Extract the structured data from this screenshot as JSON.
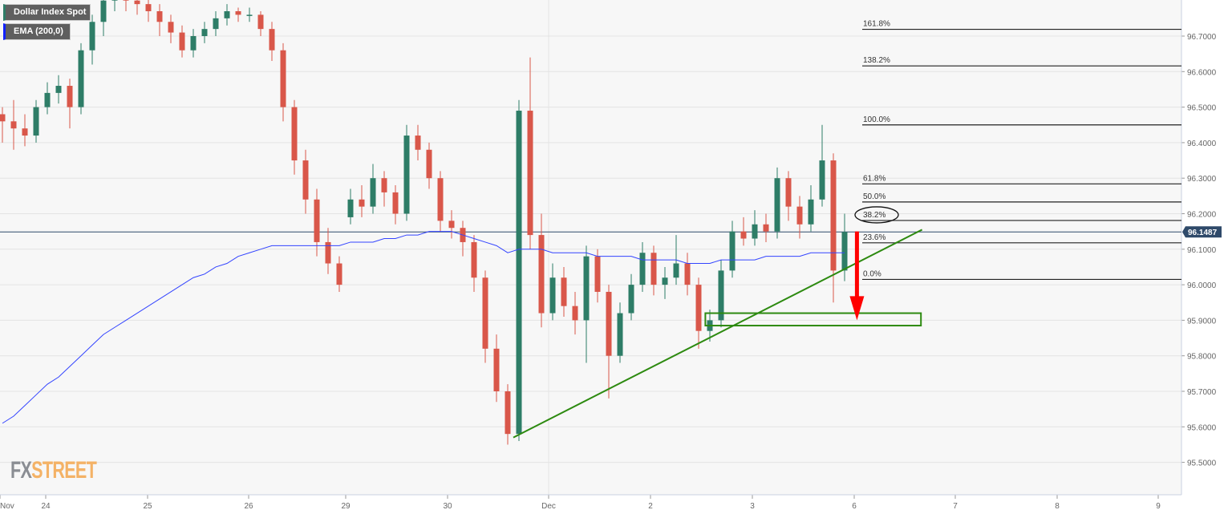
{
  "legend": {
    "symbol": "Dollar Index Spot",
    "indicator": "EMA (200,0)"
  },
  "logo": {
    "part1": "FX",
    "part2": "STREET"
  },
  "colors": {
    "up": "#2e7d67",
    "down": "#d9574a",
    "ema": "#3344ff",
    "trend": "#2d8a10",
    "arrow": "#ff0000",
    "price_label": "#2f4a6a"
  },
  "chart_data": {
    "type": "candlestick",
    "title": "Dollar Index Spot",
    "ylim": [
      95.4,
      96.8
    ],
    "y_ticks": [
      "96.7000",
      "96.6000",
      "96.5000",
      "96.4000",
      "96.3000",
      "96.2000",
      "96.1000",
      "96.0000",
      "95.9000",
      "95.8000",
      "95.7000",
      "95.6000",
      "95.5000"
    ],
    "x_ticks": [
      "Nov",
      "24",
      "25",
      "26",
      "29",
      "30",
      "Dec",
      "2",
      "3",
      "6",
      "7",
      "8",
      "9"
    ],
    "grid": true,
    "current_price": "96.1487",
    "candles_ohlc": [
      [
        96.48,
        96.5,
        96.4,
        96.46
      ],
      [
        96.46,
        96.52,
        96.38,
        96.44
      ],
      [
        96.44,
        96.48,
        96.39,
        96.42
      ],
      [
        96.42,
        96.52,
        96.4,
        96.5
      ],
      [
        96.5,
        96.57,
        96.48,
        96.54
      ],
      [
        96.54,
        96.59,
        96.51,
        96.56
      ],
      [
        96.56,
        96.58,
        96.44,
        96.5
      ],
      [
        96.5,
        96.68,
        96.48,
        96.66
      ],
      [
        96.66,
        96.76,
        96.62,
        96.74
      ],
      [
        96.74,
        96.84,
        96.7,
        96.8
      ],
      [
        96.8,
        96.85,
        96.77,
        96.82
      ],
      [
        96.82,
        96.84,
        96.77,
        96.8
      ],
      [
        96.8,
        96.82,
        96.76,
        96.79
      ],
      [
        96.79,
        96.81,
        96.74,
        96.77
      ],
      [
        96.77,
        96.79,
        96.7,
        96.74
      ],
      [
        96.74,
        96.76,
        96.68,
        96.71
      ],
      [
        96.71,
        96.73,
        96.64,
        96.66
      ],
      [
        96.66,
        96.72,
        96.64,
        96.7
      ],
      [
        96.7,
        96.74,
        96.68,
        96.72
      ],
      [
        96.72,
        96.77,
        96.7,
        96.75
      ],
      [
        96.75,
        96.79,
        96.73,
        96.77
      ],
      [
        96.77,
        96.78,
        96.74,
        96.76
      ],
      [
        96.76,
        96.78,
        96.74,
        96.76
      ],
      [
        96.76,
        96.77,
        96.7,
        96.72
      ],
      [
        96.72,
        96.74,
        96.63,
        96.66
      ],
      [
        96.66,
        96.68,
        96.46,
        96.5
      ],
      [
        96.5,
        96.52,
        96.31,
        96.35
      ],
      [
        96.35,
        96.38,
        96.2,
        96.24
      ],
      [
        96.24,
        96.27,
        96.08,
        96.12
      ],
      [
        96.12,
        96.16,
        96.03,
        96.06
      ],
      [
        96.06,
        96.08,
        95.98,
        96.0
      ],
      [
        96.19,
        96.27,
        96.17,
        96.24
      ],
      [
        96.24,
        96.28,
        96.19,
        96.22
      ],
      [
        96.22,
        96.34,
        96.2,
        96.3
      ],
      [
        96.3,
        96.32,
        96.22,
        96.26
      ],
      [
        96.26,
        96.28,
        96.17,
        96.2
      ],
      [
        96.2,
        96.45,
        96.18,
        96.42
      ],
      [
        96.42,
        96.45,
        96.35,
        96.38
      ],
      [
        96.38,
        96.4,
        96.27,
        96.3
      ],
      [
        96.3,
        96.32,
        96.15,
        96.18
      ],
      [
        96.18,
        96.21,
        96.13,
        96.16
      ],
      [
        96.16,
        96.18,
        96.08,
        96.12
      ],
      [
        96.12,
        96.14,
        95.98,
        96.02
      ],
      [
        96.02,
        96.04,
        95.78,
        95.82
      ],
      [
        95.82,
        95.86,
        95.67,
        95.7
      ],
      [
        95.7,
        95.72,
        95.55,
        95.58
      ],
      [
        95.58,
        96.52,
        95.56,
        96.49
      ],
      [
        96.49,
        96.64,
        96.1,
        96.14
      ],
      [
        96.14,
        96.2,
        95.88,
        95.92
      ],
      [
        95.92,
        96.06,
        95.9,
        96.02
      ],
      [
        96.02,
        96.05,
        95.91,
        95.94
      ],
      [
        95.94,
        95.98,
        95.86,
        95.9
      ],
      [
        95.9,
        96.11,
        95.78,
        96.08
      ],
      [
        96.08,
        96.1,
        95.95,
        95.98
      ],
      [
        95.98,
        96.0,
        95.68,
        95.8
      ],
      [
        95.8,
        95.95,
        95.78,
        95.92
      ],
      [
        95.92,
        96.03,
        95.9,
        96.0
      ],
      [
        96.0,
        96.12,
        95.98,
        96.09
      ],
      [
        96.09,
        96.11,
        95.97,
        96.0
      ],
      [
        96.0,
        96.05,
        95.96,
        96.02
      ],
      [
        96.02,
        96.14,
        96.0,
        96.06
      ],
      [
        96.06,
        96.09,
        95.97,
        96.0
      ],
      [
        96.0,
        96.02,
        95.82,
        95.87
      ],
      [
        95.87,
        95.93,
        95.84,
        95.9
      ],
      [
        95.9,
        96.07,
        95.88,
        96.04
      ],
      [
        96.04,
        96.18,
        96.02,
        96.15
      ],
      [
        96.15,
        96.19,
        96.11,
        96.13
      ],
      [
        96.13,
        96.21,
        96.11,
        96.17
      ],
      [
        96.17,
        96.2,
        96.12,
        96.15
      ],
      [
        96.15,
        96.33,
        96.13,
        96.3
      ],
      [
        96.3,
        96.32,
        96.18,
        96.22
      ],
      [
        96.22,
        96.25,
        96.13,
        96.17
      ],
      [
        96.17,
        96.28,
        96.15,
        96.24
      ],
      [
        96.24,
        96.45,
        96.22,
        96.35
      ],
      [
        96.35,
        96.37,
        95.95,
        96.04
      ],
      [
        96.04,
        96.2,
        96.01,
        96.1487
      ]
    ],
    "ema_200": [
      95.61,
      95.63,
      95.66,
      95.69,
      95.72,
      95.74,
      95.77,
      95.8,
      95.83,
      95.86,
      95.88,
      95.9,
      95.92,
      95.94,
      95.96,
      95.98,
      96.0,
      96.02,
      96.03,
      96.05,
      96.06,
      96.08,
      96.09,
      96.1,
      96.11,
      96.11,
      96.11,
      96.11,
      96.11,
      96.11,
      96.11,
      96.12,
      96.12,
      96.12,
      96.13,
      96.13,
      96.14,
      96.14,
      96.15,
      96.15,
      96.15,
      96.14,
      96.13,
      96.12,
      96.11,
      96.09,
      96.1,
      96.1,
      96.1,
      96.09,
      96.09,
      96.09,
      96.09,
      96.08,
      96.08,
      96.08,
      96.08,
      96.07,
      96.07,
      96.07,
      96.07,
      96.06,
      96.06,
      96.06,
      96.07,
      96.07,
      96.07,
      96.07,
      96.08,
      96.08,
      96.08,
      96.08,
      96.09,
      96.09,
      96.09,
      96.09
    ],
    "fibonacci": [
      {
        "label": "161.8%",
        "price": 96.719
      },
      {
        "label": "138.2%",
        "price": 96.616
      },
      {
        "label": "100.0%",
        "price": 96.45
      },
      {
        "label": "61.8%",
        "price": 96.284
      },
      {
        "label": "50.0%",
        "price": 96.233
      },
      {
        "label": "38.2%",
        "price": 96.181,
        "circled": true
      },
      {
        "label": "23.6%",
        "price": 96.118
      },
      {
        "label": "0.0%",
        "price": 96.015
      }
    ],
    "trendline": {
      "from": {
        "candle": 45.5,
        "price": 95.57
      },
      "to": {
        "candle": 81.9,
        "price": 96.155
      }
    },
    "support_zone": {
      "from_candle": 62.6,
      "to_candle": 81.8,
      "top": 95.92,
      "bottom": 95.885
    },
    "arrow": {
      "candle": 76.1,
      "from": 96.15,
      "to": 95.9
    }
  }
}
